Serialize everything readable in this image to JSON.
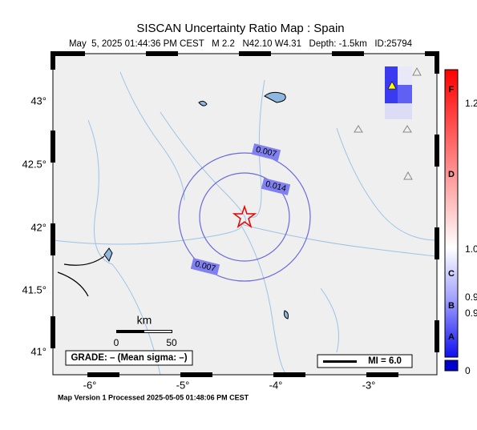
{
  "header": {
    "title": "SISCAN Uncertainty Ratio Map : Spain",
    "subtitle": "May  5, 2025 01:44:36 PM CEST   M 2.2   N42.10 W4.31   Depth: -1.5km   ID:25794"
  },
  "map": {
    "lat_labels": [
      "43°",
      "42.5°",
      "42°",
      "41.5°",
      "41°"
    ],
    "lon_labels": [
      "-6°",
      "-5°",
      "-4°",
      "-3°"
    ],
    "contour_labels": [
      "0.007",
      "0.014",
      "0.007"
    ],
    "scale": {
      "unit": "km",
      "labels": [
        "0",
        "50"
      ]
    },
    "grade": "GRADE: – (Mean sigma: –)",
    "legend": "MI = 6.0"
  },
  "colorbar": {
    "grades": [
      "F",
      "D",
      "C",
      "B",
      "A"
    ],
    "tick_labels": [
      "1.2",
      "1.0",
      "0.9",
      "0.9",
      "0"
    ]
  },
  "footer": "Map Version 1 Processed 2025-05-05 01:48:06 PM CEST"
}
